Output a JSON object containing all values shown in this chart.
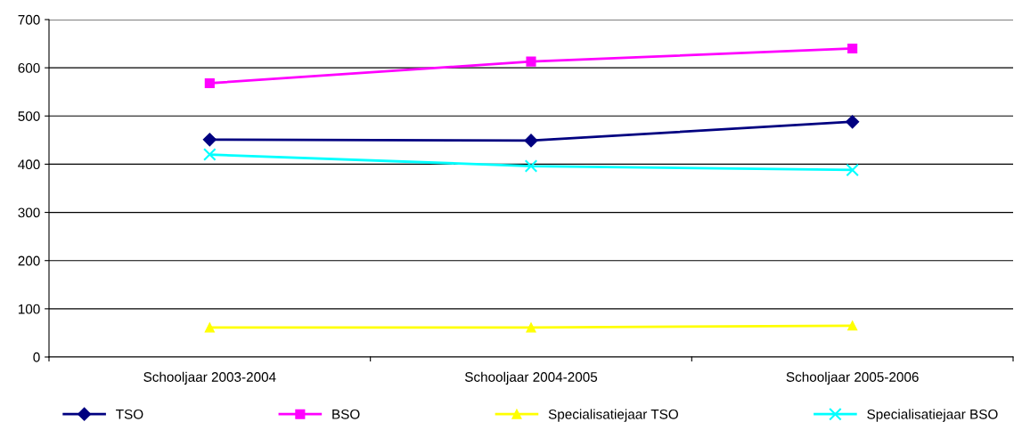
{
  "chart_data": {
    "type": "line",
    "categories": [
      "Schooljaar 2003-2004",
      "Schooljaar 2004-2005",
      "Schooljaar 2005-2006"
    ],
    "series": [
      {
        "name": "TSO",
        "color": "#000080",
        "marker": "diamond",
        "values": [
          451,
          449,
          488
        ]
      },
      {
        "name": "BSO",
        "color": "#ff00ff",
        "marker": "square",
        "values": [
          568,
          613,
          640
        ]
      },
      {
        "name": "Specialisatiejaar TSO",
        "color": "#ffff00",
        "marker": "triangle",
        "values": [
          61,
          61,
          65
        ]
      },
      {
        "name": "Specialisatiejaar BSO",
        "color": "#00ffff",
        "marker": "cross",
        "values": [
          420,
          396,
          388
        ]
      }
    ],
    "ylim": [
      0,
      700
    ],
    "yticks": [
      0,
      100,
      200,
      300,
      400,
      500,
      600,
      700
    ],
    "grid": "y",
    "legend": "bottom"
  }
}
